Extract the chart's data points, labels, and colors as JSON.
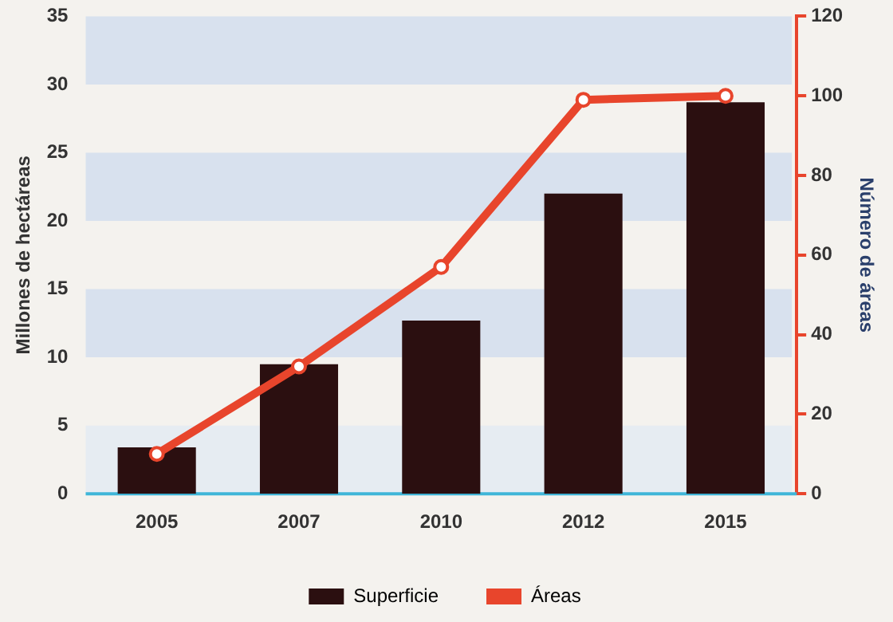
{
  "chart_data": {
    "type": "bar",
    "categories": [
      "2005",
      "2007",
      "2010",
      "2012",
      "2015"
    ],
    "ylabel": "Millones de hectáreas",
    "y2label": "Número de áreas",
    "series": [
      {
        "name": "Superficie",
        "color": "#2b0f10",
        "values": [
          3.4,
          9.5,
          12.7,
          22,
          28.7
        ]
      },
      {
        "name": "Áreas",
        "type": "line",
        "axis": "y2",
        "color": "#e8452c",
        "values": [
          10,
          32,
          57,
          99,
          100
        ]
      }
    ],
    "ylim": [
      0,
      35
    ],
    "yticks": [
      0,
      5,
      10,
      15,
      20,
      25,
      30,
      35
    ],
    "y2lim": [
      0,
      120
    ],
    "y2ticks": [
      0,
      20,
      40,
      60,
      80,
      100,
      120
    ],
    "bands": [
      {
        "axis": "y",
        "from": 0,
        "to": 5,
        "color": "#e6ecf2"
      },
      {
        "axis": "y",
        "from": 10,
        "to": 15,
        "color": "#d8e1ee"
      },
      {
        "axis": "y",
        "from": 20,
        "to": 25,
        "color": "#d8e1ee"
      },
      {
        "axis": "y",
        "from": 30,
        "to": 35,
        "color": "#d8e1ee"
      }
    ],
    "marker": "circle",
    "grid": false,
    "legend": "bottom"
  }
}
